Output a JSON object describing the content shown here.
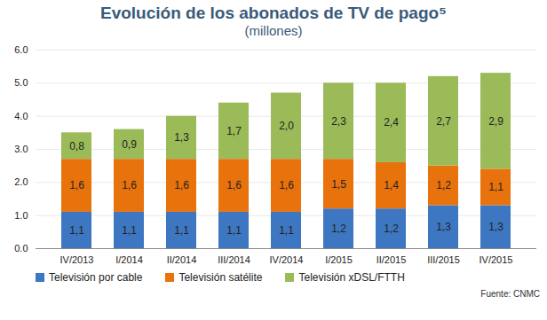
{
  "chart_data": {
    "type": "bar",
    "title": "Evolución de los abonados de TV de pago⁵",
    "subtitle": "(millones)",
    "source": "Fuente: CNMC",
    "categories": [
      "IV/2013",
      "I/2014",
      "II/2014",
      "III/2014",
      "IV/2014",
      "I/2015",
      "II/2015",
      "III/2015",
      "IV/2015"
    ],
    "series": [
      {
        "name": "Televisión por cable",
        "color": "#3e77c1",
        "values": [
          1.1,
          1.1,
          1.1,
          1.1,
          1.1,
          1.2,
          1.2,
          1.3,
          1.3
        ],
        "value_labels": [
          "1,1",
          "1,1",
          "1,1",
          "1,1",
          "1,1",
          "1,2",
          "1,2",
          "1,3",
          "1,3"
        ]
      },
      {
        "name": "Televisión satélite",
        "color": "#e8720c",
        "values": [
          1.6,
          1.6,
          1.6,
          1.6,
          1.6,
          1.5,
          1.4,
          1.2,
          1.1
        ],
        "value_labels": [
          "1,6",
          "1,6",
          "1,6",
          "1,6",
          "1,6",
          "1,5",
          "1,4",
          "1,2",
          "1,1"
        ]
      },
      {
        "name": "Televisión xDSL/FTTH",
        "color": "#9bbb59",
        "values": [
          0.8,
          0.9,
          1.3,
          1.7,
          2.0,
          2.3,
          2.4,
          2.7,
          2.9
        ],
        "value_labels": [
          "0,8",
          "0,9",
          "1,3",
          "1,7",
          "2,0",
          "2,3",
          "2,4",
          "2,7",
          "2,9"
        ]
      }
    ],
    "ylim": [
      0,
      6
    ],
    "yticks": [
      0,
      1,
      2,
      3,
      4,
      5,
      6
    ],
    "stacked": true,
    "grid": true,
    "data_labels": true,
    "legend": "bottom"
  }
}
